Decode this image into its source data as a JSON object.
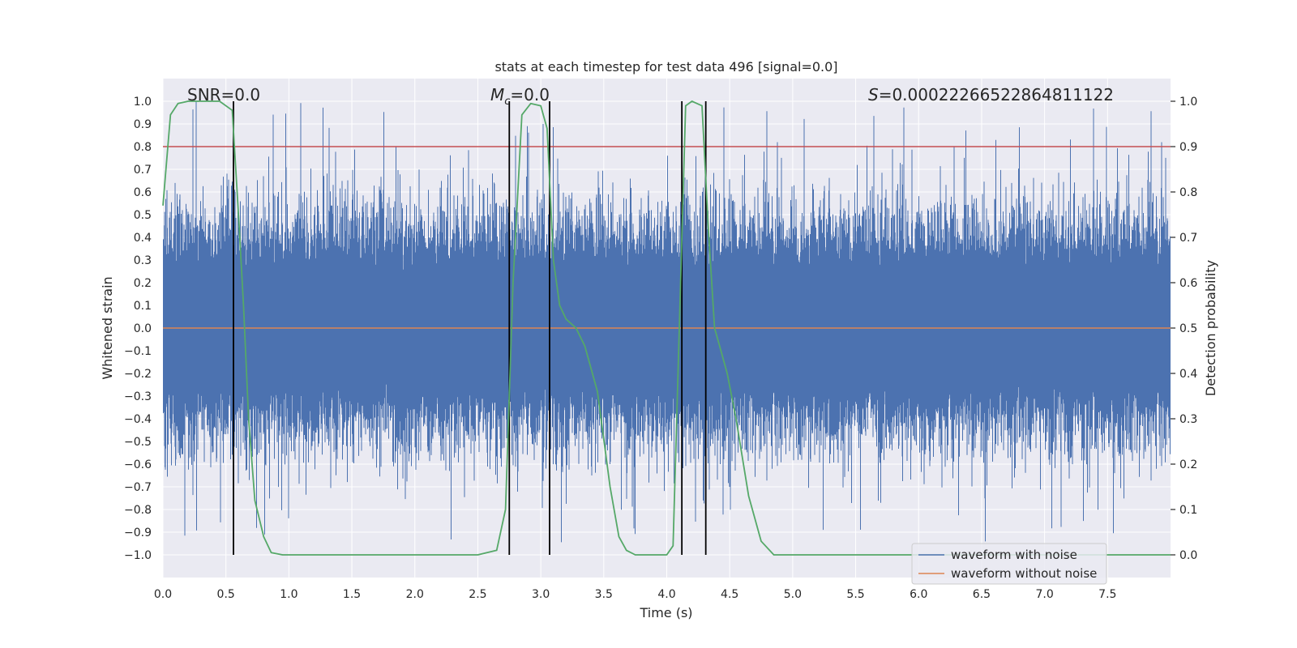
{
  "chart_data": {
    "type": "line",
    "title": "stats at each timestep for test data 496 [signal=0.0]",
    "xlabel": "Time (s)",
    "ylabel": "Whitened strain",
    "y2label": "Detection probability",
    "xlim": [
      0.0,
      8.0
    ],
    "ylim": [
      -1.1,
      1.1
    ],
    "y2lim": [
      -0.05,
      1.05
    ],
    "x_ticks": [
      0.0,
      0.5,
      1.0,
      1.5,
      2.0,
      2.5,
      3.0,
      3.5,
      4.0,
      4.5,
      5.0,
      5.5,
      6.0,
      6.5,
      7.0,
      7.5
    ],
    "x_tick_labels": [
      "0.0",
      "0.5",
      "1.0",
      "1.5",
      "2.0",
      "2.5",
      "3.0",
      "3.5",
      "4.0",
      "4.5",
      "5.0",
      "5.5",
      "6.0",
      "6.5",
      "7.0",
      "7.5"
    ],
    "y_ticks": [
      1.0,
      0.9,
      0.8,
      0.7,
      0.6,
      0.5,
      0.4,
      0.3,
      0.2,
      0.1,
      0.0,
      -0.1,
      -0.2,
      -0.3,
      -0.4,
      -0.5,
      -0.6,
      -0.7,
      -0.8,
      -0.9,
      -1.0
    ],
    "y_tick_labels": [
      "1.0",
      "0.9",
      "0.8",
      "0.7",
      "0.6",
      "0.5",
      "0.4",
      "0.3",
      "0.2",
      "0.1",
      "0.0",
      "−0.1",
      "−0.2",
      "−0.3",
      "−0.4",
      "−0.5",
      "−0.6",
      "−0.7",
      "−0.8",
      "−0.9",
      "−1.0"
    ],
    "y2_ticks": [
      1.0,
      0.9,
      0.8,
      0.7,
      0.6,
      0.5,
      0.4,
      0.3,
      0.2,
      0.1,
      0.0
    ],
    "y2_tick_labels": [
      "1.0",
      "0.9",
      "0.8",
      "0.7",
      "0.6",
      "0.5",
      "0.4",
      "0.3",
      "0.2",
      "0.1",
      "0.0"
    ],
    "threshold": 0.9,
    "vlines": [
      0.56,
      2.75,
      3.07,
      4.12,
      4.31
    ],
    "annotations": {
      "snr": "SNR=0.0",
      "mc_sym": "M",
      "mc_sub": "c",
      "mc_val": "=0.0",
      "s_sym": "S",
      "s_val": "=0.00022266522864811122"
    },
    "series": [
      {
        "name": "waveform with noise",
        "color": "#4c72b0",
        "note": "dense whitened noise, mostly within ±0.5, peaks to ±1.0"
      },
      {
        "name": "waveform without noise",
        "color": "#dd8452",
        "x": [
          0,
          8
        ],
        "y": [
          0.0,
          0.0
        ]
      },
      {
        "name": "detection probability",
        "color": "#55a868",
        "x": [
          0.0,
          0.06,
          0.12,
          0.2,
          0.3,
          0.45,
          0.55,
          0.6,
          0.64,
          0.68,
          0.73,
          0.8,
          0.86,
          0.95,
          1.5,
          2.0,
          2.5,
          2.65,
          2.72,
          2.78,
          2.85,
          2.92,
          3.0,
          3.05,
          3.1,
          3.15,
          3.2,
          3.28,
          3.35,
          3.45,
          3.55,
          3.62,
          3.68,
          3.75,
          3.85,
          4.0,
          4.05,
          4.1,
          4.15,
          4.2,
          4.28,
          4.33,
          4.38,
          4.42,
          4.48,
          4.55,
          4.65,
          4.75,
          4.85,
          5.5,
          6.5,
          7.5,
          8.0
        ],
        "y": [
          0.77,
          0.97,
          0.995,
          1.0,
          1.0,
          1.0,
          0.98,
          0.75,
          0.55,
          0.3,
          0.12,
          0.04,
          0.005,
          0.0,
          0.0,
          0.0,
          0.0,
          0.01,
          0.1,
          0.6,
          0.97,
          0.995,
          0.99,
          0.94,
          0.65,
          0.55,
          0.52,
          0.5,
          0.46,
          0.36,
          0.15,
          0.04,
          0.01,
          0.0,
          0.0,
          0.0,
          0.02,
          0.5,
          0.99,
          1.0,
          0.99,
          0.72,
          0.5,
          0.46,
          0.4,
          0.3,
          0.13,
          0.03,
          0.0,
          0.0,
          0.0,
          0.0,
          0.0
        ]
      }
    ],
    "legend": {
      "position": "lower-right",
      "entries": [
        "waveform with noise",
        "waveform without noise"
      ]
    }
  }
}
